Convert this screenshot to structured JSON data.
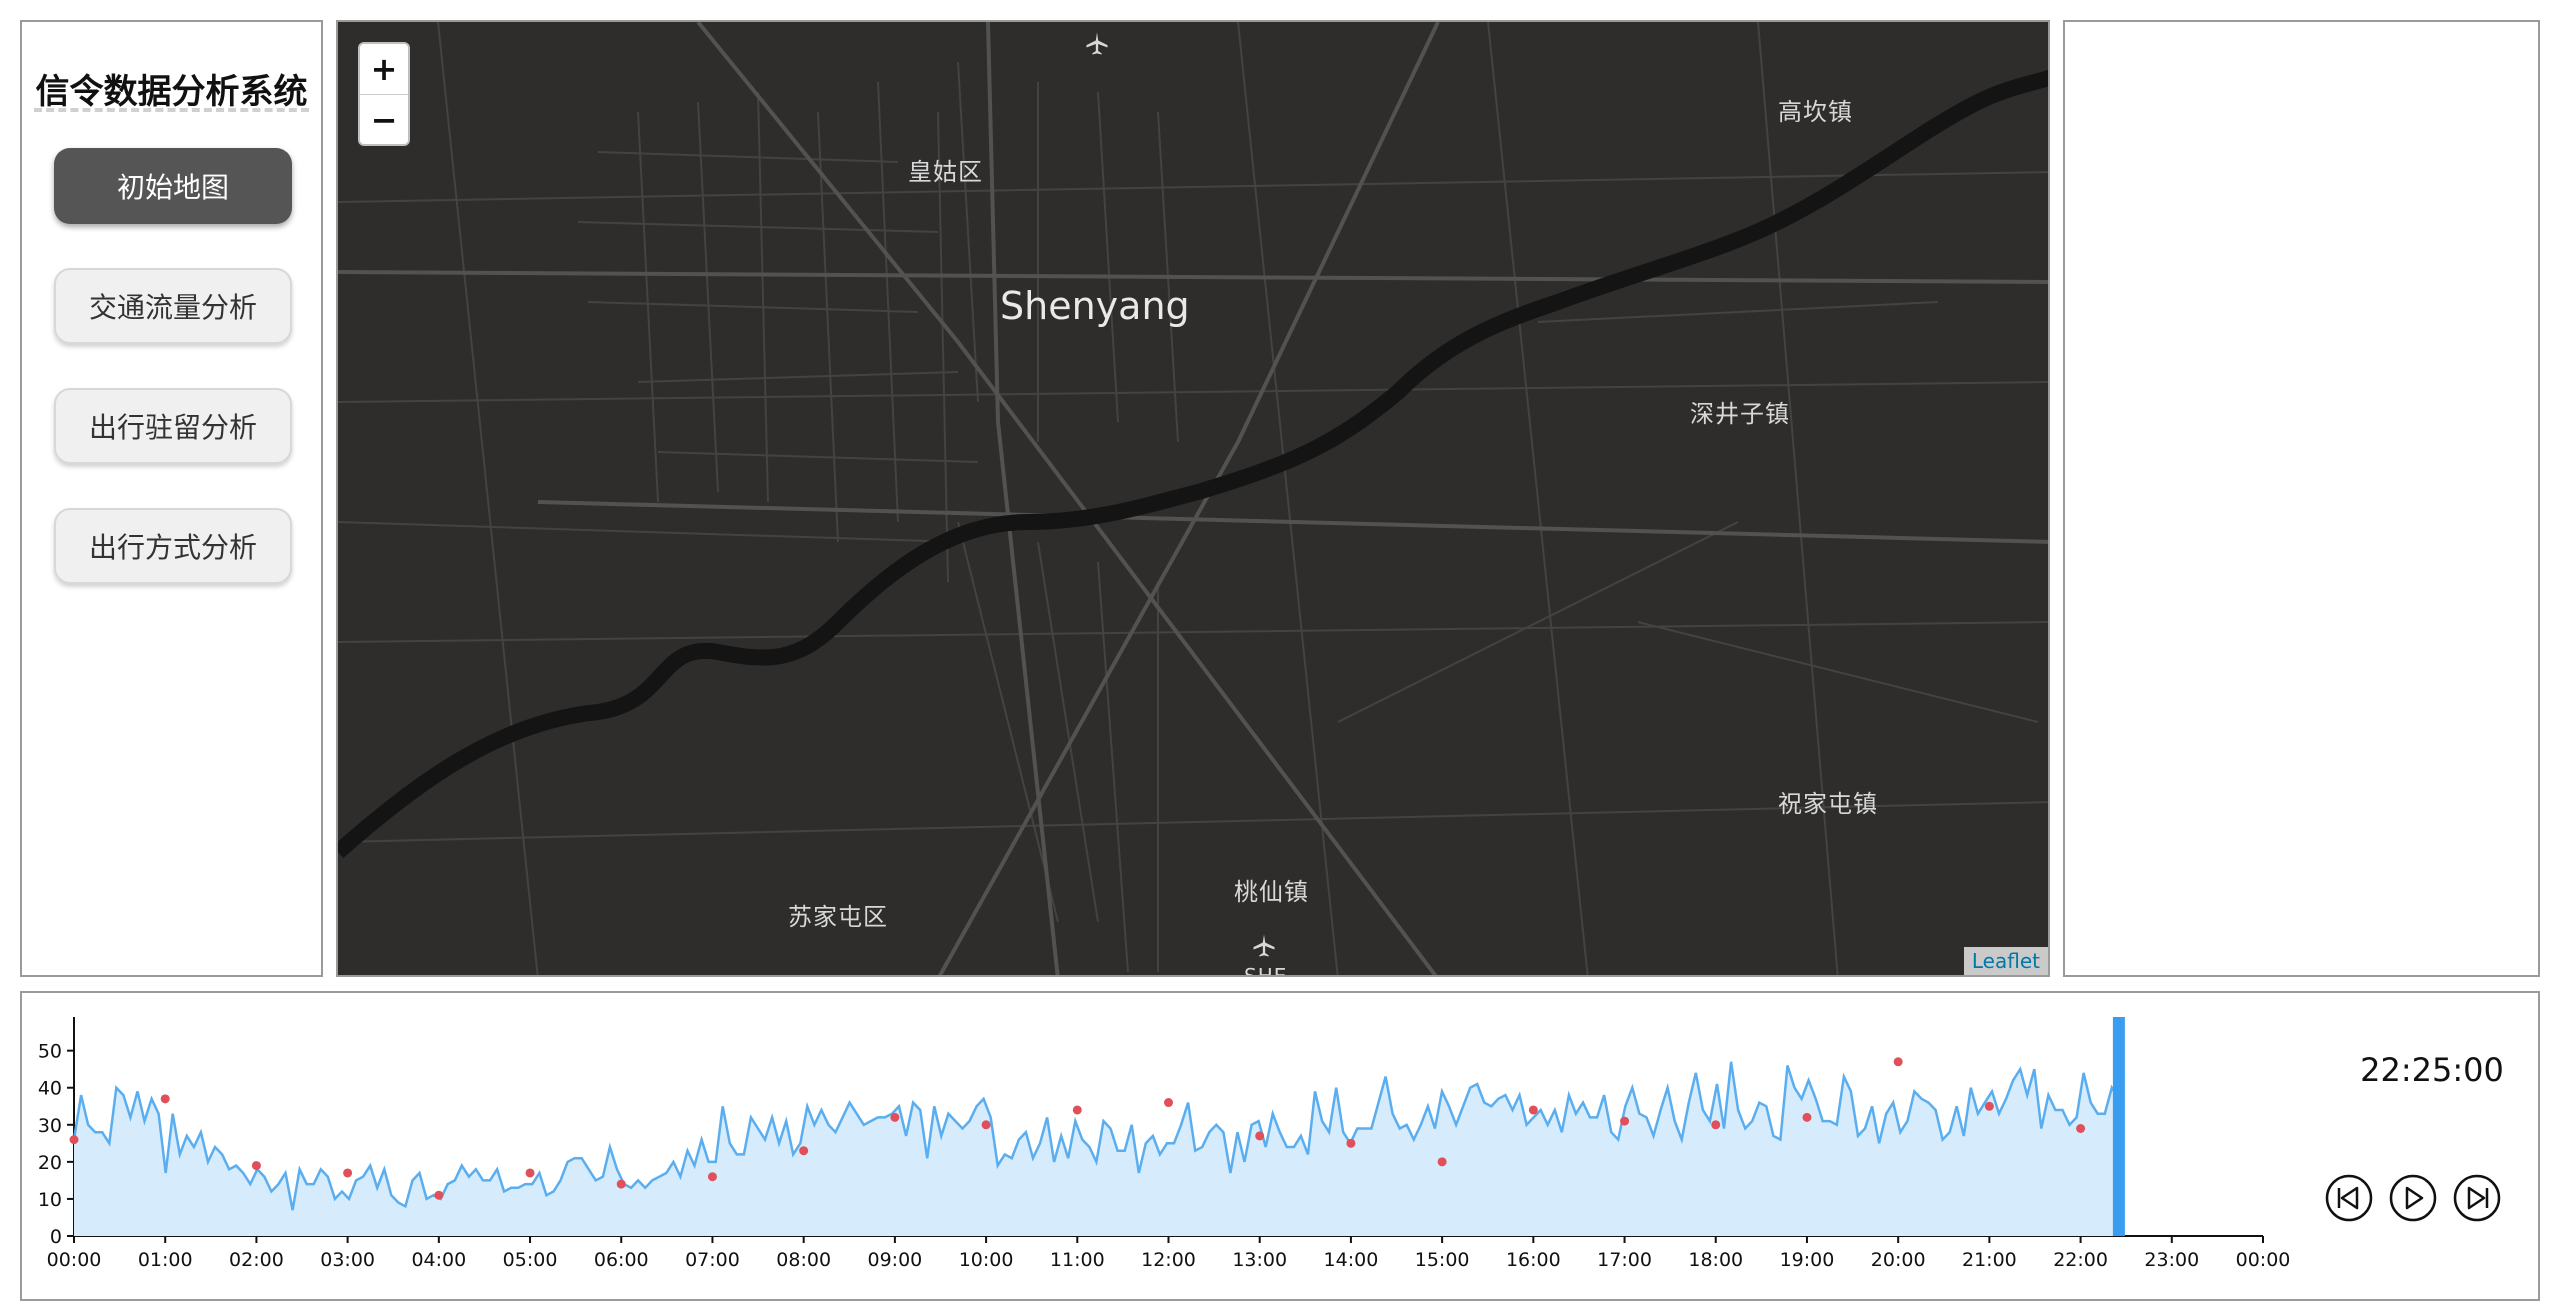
{
  "sidebar": {
    "title": "信令数据分析系统",
    "menu": [
      {
        "label": "初始地图",
        "active": true
      },
      {
        "label": "交通流量分析",
        "active": false
      },
      {
        "label": "出行驻留分析",
        "active": false
      },
      {
        "label": "出行方式分析",
        "active": false
      }
    ]
  },
  "map": {
    "zoom_in_label": "+",
    "zoom_out_label": "−",
    "attribution": "Leaflet",
    "city_label": "Shenyang",
    "place_labels": [
      "皇姑区",
      "高坎镇",
      "深井子镇",
      "祝家屯镇",
      "桃仙镇",
      "苏家屯区",
      "SHE"
    ],
    "background_color": "#2e2d2c",
    "road_color": "#4a4a48",
    "river_color": "#141414"
  },
  "timeline": {
    "current_time": "22:25:00",
    "controls": [
      "step-backward-icon",
      "play-icon",
      "step-forward-icon"
    ],
    "colors": {
      "line": "#5aaef0",
      "area": "#d6ebfb",
      "marker": "#e0505a",
      "cursor": "#3a9df0"
    }
  },
  "chart_data": {
    "type": "area",
    "x_ticks": [
      "00:00",
      "01:00",
      "02:00",
      "03:00",
      "04:00",
      "05:00",
      "06:00",
      "07:00",
      "08:00",
      "09:00",
      "10:00",
      "11:00",
      "12:00",
      "13:00",
      "14:00",
      "15:00",
      "16:00",
      "17:00",
      "18:00",
      "19:00",
      "20:00",
      "21:00",
      "22:00",
      "23:00",
      "00:00"
    ],
    "y_ticks": [
      0,
      10,
      20,
      30,
      40,
      50
    ],
    "ylim": [
      0,
      58
    ],
    "x_range_hours": [
      0,
      24
    ],
    "current_hour": 22.42,
    "values": [
      26,
      38,
      30,
      28,
      28,
      25,
      40,
      38,
      32,
      39,
      31,
      37,
      33,
      17,
      33,
      22,
      27,
      24,
      28,
      20,
      24,
      22,
      18,
      19,
      17,
      14,
      18,
      16,
      12,
      14,
      17,
      7,
      18,
      14,
      14,
      18,
      16,
      10,
      12,
      10,
      15,
      16,
      19,
      13,
      18,
      11,
      9,
      8,
      15,
      17,
      10,
      11,
      10,
      14,
      15,
      19,
      16,
      18,
      15,
      15,
      18,
      12,
      13,
      13,
      14,
      14,
      17,
      11,
      12,
      15,
      20,
      21,
      21,
      18,
      15,
      16,
      24,
      18,
      14,
      13,
      15,
      13,
      15,
      16,
      17,
      20,
      16,
      23,
      19,
      26,
      20,
      20,
      35,
      25,
      22,
      22,
      32,
      29,
      26,
      32,
      25,
      31,
      22,
      25,
      35,
      30,
      34,
      30,
      28,
      32,
      36,
      33,
      30,
      31,
      32,
      32,
      33,
      35,
      27,
      36,
      34,
      21,
      35,
      27,
      33,
      31,
      29,
      31,
      35,
      37,
      32,
      19,
      22,
      21,
      26,
      28,
      21,
      25,
      32,
      20,
      27,
      21,
      31,
      26,
      24,
      20,
      31,
      29,
      23,
      23,
      30,
      17,
      25,
      27,
      22,
      25,
      25,
      30,
      36,
      23,
      24,
      28,
      30,
      28,
      17,
      28,
      20,
      30,
      31,
      24,
      33,
      28,
      24,
      24,
      27,
      22,
      39,
      31,
      28,
      40,
      28,
      25,
      29,
      29,
      29,
      36,
      43,
      33,
      29,
      30,
      26,
      30,
      35,
      29,
      39,
      35,
      30,
      35,
      40,
      41,
      36,
      35,
      37,
      38,
      34,
      38,
      30,
      32,
      34,
      30,
      34,
      28,
      38,
      33,
      36,
      32,
      32,
      38,
      28,
      26,
      35,
      40,
      33,
      32,
      27,
      34,
      40,
      31,
      26,
      36,
      44,
      34,
      31,
      41,
      29,
      47,
      34,
      29,
      31,
      36,
      35,
      27,
      26,
      46,
      40,
      37,
      42,
      37,
      31,
      31,
      30,
      43,
      39,
      27,
      29,
      35,
      25,
      33,
      36,
      28,
      31,
      39,
      37,
      36,
      34,
      26,
      28,
      35,
      27,
      40,
      33,
      36,
      39,
      33,
      37,
      42,
      45,
      38,
      45,
      29,
      38,
      34,
      34,
      30,
      32,
      44,
      36,
      33,
      33,
      40,
      37
    ],
    "markers": [
      {
        "x": 0.0,
        "y": 26
      },
      {
        "x": 1.0,
        "y": 37
      },
      {
        "x": 2.0,
        "y": 19
      },
      {
        "x": 3.0,
        "y": 17
      },
      {
        "x": 4.0,
        "y": 11
      },
      {
        "x": 5.0,
        "y": 17
      },
      {
        "x": 6.0,
        "y": 14
      },
      {
        "x": 7.0,
        "y": 16
      },
      {
        "x": 8.0,
        "y": 23
      },
      {
        "x": 9.0,
        "y": 32
      },
      {
        "x": 10.0,
        "y": 30
      },
      {
        "x": 11.0,
        "y": 34
      },
      {
        "x": 12.0,
        "y": 36
      },
      {
        "x": 13.0,
        "y": 27
      },
      {
        "x": 14.0,
        "y": 25
      },
      {
        "x": 15.0,
        "y": 20
      },
      {
        "x": 16.0,
        "y": 34
      },
      {
        "x": 17.0,
        "y": 31
      },
      {
        "x": 18.0,
        "y": 30
      },
      {
        "x": 19.0,
        "y": 32
      },
      {
        "x": 20.0,
        "y": 47
      },
      {
        "x": 21.0,
        "y": 35
      },
      {
        "x": 22.0,
        "y": 29
      }
    ]
  }
}
